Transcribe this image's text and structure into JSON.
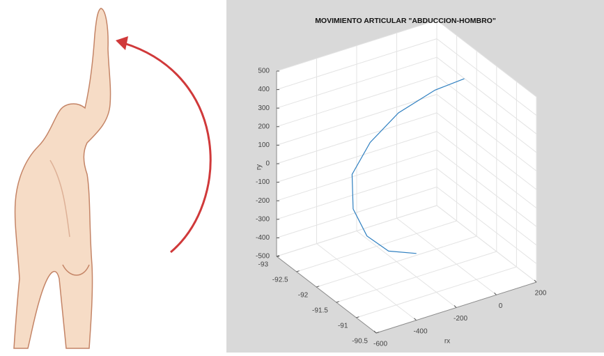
{
  "chart_data": {
    "type": "line3d",
    "title": "MOVIMIENTO ARTICULAR \"ABDUCCION-HOMBRO\"",
    "xlabel": "rx",
    "zlabel": "ry",
    "x": [
      -101,
      -220,
      -318,
      -377,
      -382,
      -332,
      -230,
      -88,
      39
    ],
    "y": [
      -92.0,
      -92.1,
      -92.15,
      -92.2,
      -92.2,
      -92.0,
      -91.8,
      -91.6,
      -91.5
    ],
    "z": [
      -490,
      -453,
      -346,
      -188,
      0,
      188,
      346,
      453,
      488
    ],
    "color": "#2e7fc0",
    "xlim": [
      -600,
      200
    ],
    "xticks": [
      -600,
      -400,
      -200,
      0,
      200
    ],
    "ylim": [
      -93,
      -90.5
    ],
    "yticks": [
      -93,
      -92.5,
      -92,
      -91.5,
      -91,
      -90.5
    ],
    "zlim": [
      -500,
      500
    ],
    "zticks": [
      -500,
      -400,
      -300,
      -200,
      -100,
      0,
      100,
      200,
      300,
      400,
      500
    ],
    "grid": true
  }
}
